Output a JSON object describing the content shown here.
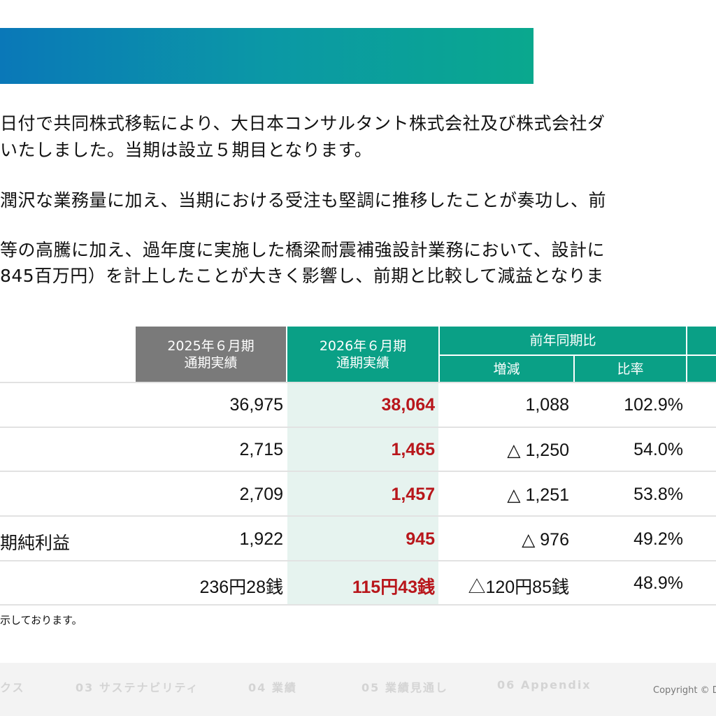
{
  "paragraphs": [
    "日付で共同株式移転により、大日本コンサルタント株式会社及び株式会社ダ",
    "いたしました。当期は設立５期目となります。",
    "潤沢な業務量に加え、当期における受注も堅調に推移したことが奏功し、前",
    "等の高騰に加え、過年度に実施した橋梁耐震補強設計業務において、設計に",
    "845百万円）を計上したことが大きく影響し、前期と比較して減益となりま"
  ],
  "table": {
    "headers": {
      "prev_period": "2025年６月期\n通期実績",
      "curr_period": "2026年６月期\n通期実績",
      "yoy": "前年同期比",
      "change": "増減",
      "ratio": "比率"
    },
    "rows": [
      {
        "label": "",
        "prev": "36,975",
        "curr": "38,064",
        "change": "1,088",
        "ratio": "102.9%"
      },
      {
        "label": "",
        "prev": "2,715",
        "curr": "1,465",
        "change": "△ 1,250",
        "ratio": "54.0%"
      },
      {
        "label": "",
        "prev": "2,709",
        "curr": "1,457",
        "change": "△ 1,251",
        "ratio": "53.8%"
      },
      {
        "label": "期純利益",
        "prev": "1,922",
        "curr": "945",
        "change": "△ 976",
        "ratio": "49.2%"
      },
      {
        "label": "",
        "prev": "236円28銭",
        "curr": "115円43銭",
        "change": "△120円85銭",
        "ratio": "48.9%"
      }
    ]
  },
  "note": "示しております。",
  "footer": {
    "nav": [
      "クス",
      "03 サステナビリティ",
      "04 業績",
      "05 業績見通し",
      "06 Appendix"
    ],
    "copyright": "Copyright © D"
  },
  "colors": {
    "accent_green": "#0aa086",
    "header_gray": "#7a7a7a",
    "highlight_red": "#b8161b",
    "banner_blue": "#0a78b8"
  }
}
